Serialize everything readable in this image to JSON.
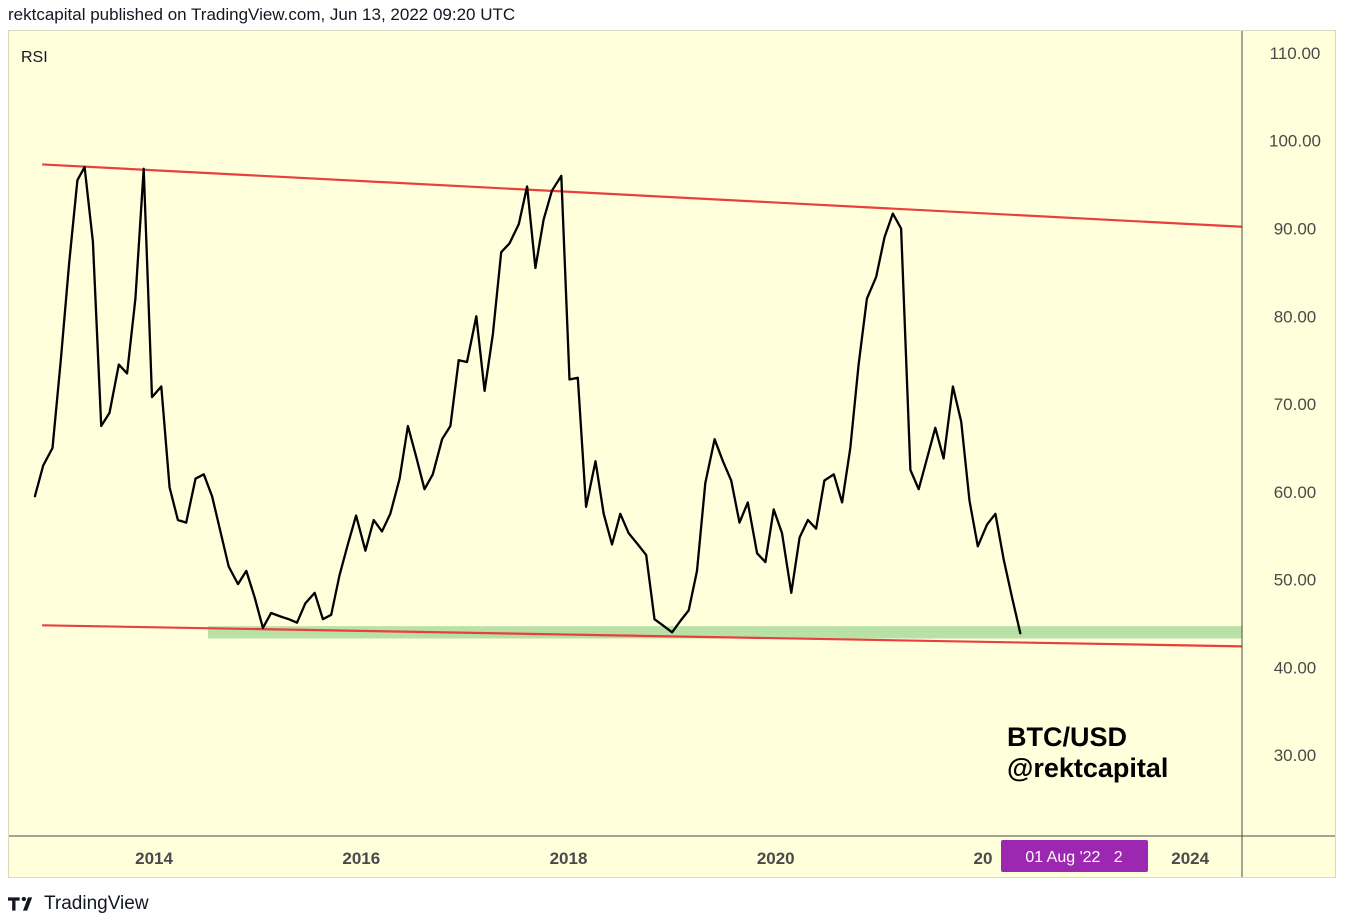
{
  "header": {
    "text": "rektcapital published on TradingView.com, Jun 13, 2022 09:20 UTC"
  },
  "footer": {
    "brand": "TradingView",
    "logo_icon": "tradingview-logo-icon"
  },
  "colors": {
    "background": "#ffffdc",
    "rsi_line": "#000000",
    "channel": "#e8413c",
    "support_zone": "#b9e0a5",
    "crosshair_badge": "#9c27b0"
  },
  "chart_data": {
    "type": "line",
    "indicator_label": "RSI",
    "watermark": [
      "BTC/USD",
      "@rektcapital"
    ],
    "y_ticks": [
      "110.00",
      "100.00",
      "90.00",
      "80.00",
      "70.00",
      "60.00",
      "50.00",
      "40.00",
      "30.00"
    ],
    "x_ticks": [
      "2014",
      "2016",
      "2018",
      "2020",
      "20",
      "2024"
    ],
    "crosshair_label": "01 Aug '22   2",
    "ylim": [
      20.8,
      112.5
    ],
    "xlim": [
      2012.6,
      2024.5
    ],
    "grid": false,
    "series": [
      {
        "values": [
          [
            2012.85,
            59.5
          ],
          [
            2012.93,
            63.0
          ],
          [
            2013.02,
            65.0
          ],
          [
            2013.1,
            75.0
          ],
          [
            2013.18,
            86.0
          ],
          [
            2013.26,
            95.5
          ],
          [
            2013.33,
            97.0
          ],
          [
            2013.41,
            88.5
          ],
          [
            2013.49,
            67.5
          ],
          [
            2013.57,
            69.0
          ],
          [
            2013.66,
            74.5
          ],
          [
            2013.74,
            73.5
          ],
          [
            2013.82,
            82.0
          ],
          [
            2013.9,
            96.8
          ],
          [
            2013.98,
            70.8
          ],
          [
            2014.07,
            72.0
          ],
          [
            2014.15,
            60.5
          ],
          [
            2014.23,
            56.8
          ],
          [
            2014.31,
            56.5
          ],
          [
            2014.4,
            61.5
          ],
          [
            2014.48,
            62.0
          ],
          [
            2014.56,
            59.5
          ],
          [
            2014.64,
            55.5
          ],
          [
            2014.72,
            51.5
          ],
          [
            2014.81,
            49.5
          ],
          [
            2014.89,
            51.0
          ],
          [
            2014.97,
            48.0
          ],
          [
            2015.05,
            44.5
          ],
          [
            2015.13,
            46.2
          ],
          [
            2015.22,
            45.8
          ],
          [
            2015.3,
            45.5
          ],
          [
            2015.38,
            45.1
          ],
          [
            2015.46,
            47.3
          ],
          [
            2015.55,
            48.5
          ],
          [
            2015.63,
            45.5
          ],
          [
            2015.71,
            46.0
          ],
          [
            2015.79,
            50.5
          ],
          [
            2015.87,
            54.0
          ],
          [
            2015.95,
            57.3
          ],
          [
            2016.04,
            53.3
          ],
          [
            2016.12,
            56.8
          ],
          [
            2016.2,
            55.5
          ],
          [
            2016.28,
            57.5
          ],
          [
            2016.37,
            61.5
          ],
          [
            2016.45,
            67.5
          ],
          [
            2016.53,
            64.0
          ],
          [
            2016.61,
            60.3
          ],
          [
            2016.69,
            62.0
          ],
          [
            2016.78,
            66.0
          ],
          [
            2016.86,
            67.5
          ],
          [
            2016.94,
            75.0
          ],
          [
            2017.02,
            74.8
          ],
          [
            2017.11,
            80.0
          ],
          [
            2017.19,
            71.5
          ],
          [
            2017.27,
            78.0
          ],
          [
            2017.35,
            87.3
          ],
          [
            2017.43,
            88.3
          ],
          [
            2017.52,
            90.5
          ],
          [
            2017.6,
            94.8
          ],
          [
            2017.68,
            85.5
          ],
          [
            2017.76,
            91.0
          ],
          [
            2017.84,
            94.3
          ],
          [
            2017.93,
            96.0
          ],
          [
            2018.01,
            72.8
          ],
          [
            2018.09,
            73.0
          ],
          [
            2018.17,
            58.3
          ],
          [
            2018.26,
            63.5
          ],
          [
            2018.34,
            57.5
          ],
          [
            2018.42,
            54.0
          ],
          [
            2018.5,
            57.5
          ],
          [
            2018.58,
            55.3
          ],
          [
            2018.67,
            54.0
          ],
          [
            2018.75,
            52.8
          ],
          [
            2018.83,
            45.5
          ],
          [
            2018.91,
            44.8
          ],
          [
            2019.0,
            44.0
          ],
          [
            2019.08,
            45.3
          ],
          [
            2019.16,
            46.5
          ],
          [
            2019.24,
            51.0
          ],
          [
            2019.32,
            61.0
          ],
          [
            2019.41,
            66.0
          ],
          [
            2019.49,
            63.5
          ],
          [
            2019.57,
            61.3
          ],
          [
            2019.65,
            56.5
          ],
          [
            2019.73,
            58.8
          ],
          [
            2019.82,
            53.0
          ],
          [
            2019.9,
            52.0
          ],
          [
            2019.98,
            58.0
          ],
          [
            2020.06,
            55.3
          ],
          [
            2020.15,
            48.5
          ],
          [
            2020.23,
            54.8
          ],
          [
            2020.31,
            56.8
          ],
          [
            2020.39,
            55.8
          ],
          [
            2020.47,
            61.3
          ],
          [
            2020.56,
            62.0
          ],
          [
            2020.64,
            58.8
          ],
          [
            2020.72,
            65.0
          ],
          [
            2020.8,
            74.5
          ],
          [
            2020.88,
            82.0
          ],
          [
            2020.97,
            84.5
          ],
          [
            2021.05,
            89.0
          ],
          [
            2021.13,
            91.7
          ],
          [
            2021.21,
            90.0
          ],
          [
            2021.3,
            62.5
          ],
          [
            2021.38,
            60.3
          ],
          [
            2021.46,
            63.8
          ],
          [
            2021.54,
            67.3
          ],
          [
            2021.62,
            63.8
          ],
          [
            2021.71,
            72.0
          ],
          [
            2021.79,
            68.0
          ],
          [
            2021.87,
            59.0
          ],
          [
            2021.95,
            53.8
          ],
          [
            2022.04,
            56.3
          ],
          [
            2022.12,
            57.5
          ],
          [
            2022.2,
            52.3
          ],
          [
            2022.28,
            48.0
          ],
          [
            2022.36,
            43.9
          ]
        ]
      }
    ],
    "trendlines": [
      {
        "points": [
          [
            2012.92,
            97.3
          ],
          [
            2024.5,
            90.2
          ]
        ]
      },
      {
        "points": [
          [
            2012.92,
            44.8
          ],
          [
            2024.5,
            42.4
          ]
        ]
      }
    ],
    "zones": [
      {
        "x": [
          2014.52,
          2024.5
        ],
        "y": [
          43.3,
          44.7
        ]
      }
    ]
  }
}
